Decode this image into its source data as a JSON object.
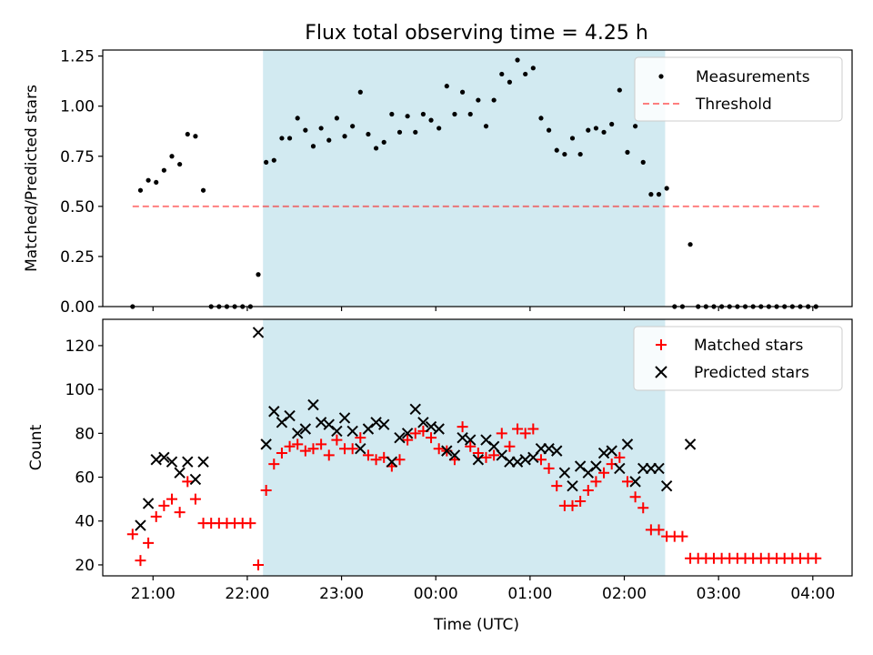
{
  "title": "Flux total observing time = 4.25 h",
  "xlabel": "Time (UTC)",
  "xticks": [
    "21:00",
    "22:00",
    "23:00",
    "00:00",
    "01:00",
    "02:00",
    "03:00",
    "04:00"
  ],
  "colors": {
    "shade": "#add8e6",
    "threshold": "#ff0000",
    "matched": "#ff0000",
    "predicted": "#000000",
    "measurements": "#000000"
  },
  "chart_data": [
    {
      "type": "scatter",
      "ylabel": "Matched/Predicted stars",
      "ylim": [
        0,
        1.28
      ],
      "yticks": [
        "0.00",
        "0.25",
        "0.50",
        "0.75",
        "1.00",
        "1.25"
      ],
      "xlim": [
        "20:28",
        "04:25"
      ],
      "observing_window": [
        "22:10",
        "02:26"
      ],
      "legend_position": "top-right",
      "legend": [
        "Measurements",
        "Threshold"
      ],
      "threshold": {
        "name": "Threshold",
        "value": 0.5,
        "x_range": [
          "20:47",
          "04:04"
        ]
      },
      "series": [
        {
          "name": "Measurements",
          "x": [
            "20:47",
            "20:52",
            "20:57",
            "21:02",
            "21:07",
            "21:12",
            "21:17",
            "21:22",
            "21:27",
            "21:32",
            "21:37",
            "21:42",
            "21:47",
            "21:52",
            "21:57",
            "22:02",
            "22:07",
            "22:12",
            "22:17",
            "22:22",
            "22:27",
            "22:32",
            "22:37",
            "22:42",
            "22:47",
            "22:52",
            "22:57",
            "23:02",
            "23:07",
            "23:12",
            "23:17",
            "23:22",
            "23:27",
            "23:32",
            "23:37",
            "23:42",
            "23:47",
            "23:52",
            "23:57",
            "00:02",
            "00:07",
            "00:12",
            "00:17",
            "00:22",
            "00:27",
            "00:32",
            "00:37",
            "00:42",
            "00:47",
            "00:52",
            "00:57",
            "01:02",
            "01:07",
            "01:12",
            "01:17",
            "01:22",
            "01:27",
            "01:32",
            "01:37",
            "01:42",
            "01:47",
            "01:52",
            "01:57",
            "02:02",
            "02:07",
            "02:12",
            "02:17",
            "02:22",
            "02:27",
            "02:32",
            "02:37",
            "02:42",
            "02:47",
            "02:52",
            "02:57",
            "03:02",
            "03:07",
            "03:12",
            "03:17",
            "03:22",
            "03:27",
            "03:32",
            "03:37",
            "03:42",
            "03:47",
            "03:52",
            "03:57",
            "04:02"
          ],
          "y": [
            0.0,
            0.58,
            0.63,
            0.62,
            0.68,
            0.75,
            0.71,
            0.86,
            0.85,
            0.58,
            0.0,
            0.0,
            0.0,
            0.0,
            0.0,
            0.0,
            0.16,
            0.72,
            0.73,
            0.84,
            0.84,
            0.94,
            0.88,
            0.8,
            0.89,
            0.83,
            0.94,
            0.85,
            0.9,
            1.07,
            0.86,
            0.79,
            0.82,
            0.96,
            0.87,
            0.95,
            0.87,
            0.96,
            0.93,
            0.89,
            1.1,
            0.96,
            1.07,
            0.96,
            1.03,
            0.9,
            1.03,
            1.16,
            1.12,
            1.23,
            1.16,
            1.19,
            0.94,
            0.88,
            0.78,
            0.76,
            0.84,
            0.76,
            0.88,
            0.89,
            0.87,
            0.91,
            1.08,
            0.77,
            0.9,
            0.72,
            0.56,
            0.56,
            0.59,
            0.0,
            0.0,
            0.31,
            0.0,
            0.0,
            0.0,
            0.0,
            0.0,
            0.0,
            0.0,
            0.0,
            0.0,
            0.0,
            0.0,
            0.0,
            0.0,
            0.0,
            0.0,
            0.0
          ]
        }
      ]
    },
    {
      "type": "scatter",
      "ylabel": "Count",
      "ylim": [
        15,
        132
      ],
      "yticks": [
        "20",
        "40",
        "60",
        "80",
        "100",
        "120"
      ],
      "xlim": [
        "20:28",
        "04:25"
      ],
      "observing_window": [
        "22:10",
        "02:26"
      ],
      "legend_position": "top-right",
      "legend": [
        "Matched stars",
        "Predicted stars"
      ],
      "series": [
        {
          "name": "Matched stars",
          "x": [
            "20:47",
            "20:52",
            "20:57",
            "21:02",
            "21:07",
            "21:12",
            "21:17",
            "21:22",
            "21:27",
            "21:32",
            "21:37",
            "21:42",
            "21:47",
            "21:52",
            "21:57",
            "22:02",
            "22:07",
            "22:12",
            "22:17",
            "22:22",
            "22:27",
            "22:32",
            "22:37",
            "22:42",
            "22:47",
            "22:52",
            "22:57",
            "23:02",
            "23:07",
            "23:12",
            "23:17",
            "23:22",
            "23:27",
            "23:32",
            "23:37",
            "23:42",
            "23:47",
            "23:52",
            "23:57",
            "00:02",
            "00:07",
            "00:12",
            "00:17",
            "00:22",
            "00:27",
            "00:32",
            "00:37",
            "00:42",
            "00:47",
            "00:52",
            "00:57",
            "01:02",
            "01:07",
            "01:12",
            "01:17",
            "01:22",
            "01:27",
            "01:32",
            "01:37",
            "01:42",
            "01:47",
            "01:52",
            "01:57",
            "02:02",
            "02:07",
            "02:12",
            "02:17",
            "02:22",
            "02:27",
            "02:32",
            "02:37",
            "02:42",
            "02:47",
            "02:52",
            "02:57",
            "03:02",
            "03:07",
            "03:12",
            "03:17",
            "03:22",
            "03:27",
            "03:32",
            "03:37",
            "03:42",
            "03:47",
            "03:52",
            "03:57",
            "04:02"
          ],
          "y": [
            34,
            22,
            30,
            42,
            47,
            50,
            44,
            58,
            50,
            39,
            39,
            39,
            39,
            39,
            39,
            39,
            20,
            54,
            66,
            71,
            74,
            75,
            72,
            73,
            75,
            70,
            77,
            73,
            73,
            78,
            70,
            68,
            69,
            65,
            68,
            77,
            80,
            81,
            78,
            73,
            72,
            68,
            83,
            74,
            71,
            69,
            70,
            80,
            74,
            82,
            80,
            82,
            68,
            64,
            56,
            47,
            47,
            49,
            54,
            58,
            62,
            66,
            69,
            58,
            51,
            46,
            36,
            36,
            33,
            33,
            33,
            23,
            23,
            23,
            23,
            23,
            23,
            23,
            23,
            23,
            23,
            23,
            23,
            23,
            23,
            23,
            23,
            23
          ]
        },
        {
          "name": "Predicted stars",
          "x": [
            "20:52",
            "20:57",
            "21:02",
            "21:07",
            "21:12",
            "21:17",
            "21:22",
            "21:27",
            "21:32",
            "22:07",
            "22:12",
            "22:17",
            "22:22",
            "22:27",
            "22:32",
            "22:37",
            "22:42",
            "22:47",
            "22:52",
            "22:57",
            "23:02",
            "23:07",
            "23:12",
            "23:17",
            "23:22",
            "23:27",
            "23:32",
            "23:37",
            "23:42",
            "23:47",
            "23:52",
            "23:57",
            "00:02",
            "00:07",
            "00:12",
            "00:17",
            "00:22",
            "00:27",
            "00:32",
            "00:37",
            "00:42",
            "00:47",
            "00:52",
            "00:57",
            "01:02",
            "01:07",
            "01:12",
            "01:17",
            "01:22",
            "01:27",
            "01:32",
            "01:37",
            "01:42",
            "01:47",
            "01:52",
            "01:57",
            "02:02",
            "02:07",
            "02:12",
            "02:17",
            "02:22",
            "02:27",
            "02:42"
          ],
          "y": [
            38,
            48,
            68,
            69,
            67,
            62,
            67,
            59,
            67,
            126,
            75,
            90,
            85,
            88,
            80,
            82,
            93,
            85,
            84,
            81,
            87,
            81,
            73,
            82,
            85,
            84,
            67,
            78,
            80,
            91,
            85,
            83,
            82,
            72,
            70,
            78,
            77,
            68,
            77,
            74,
            70,
            67,
            67,
            68,
            69,
            73,
            73,
            72,
            62,
            56,
            65,
            62,
            65,
            71,
            72,
            64,
            75,
            58,
            64,
            64,
            64,
            56,
            75
          ]
        }
      ]
    }
  ]
}
